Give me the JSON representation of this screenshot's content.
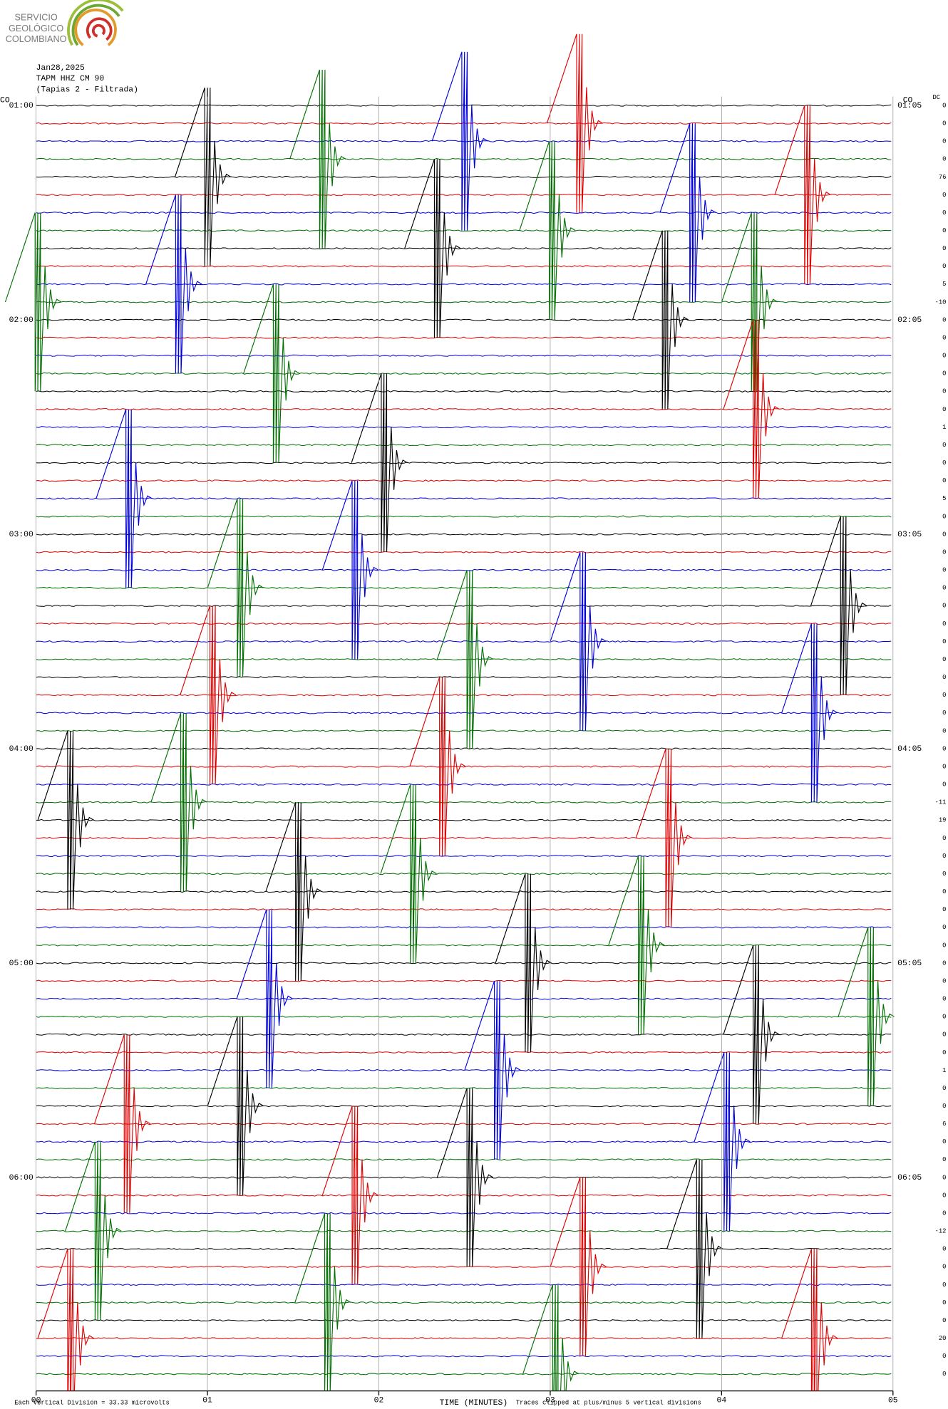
{
  "logo": {
    "lines": [
      "SERVICIO",
      "GEOLÓGICO",
      "COLOMBIANO"
    ]
  },
  "chart_data": {
    "type": "helicorder",
    "header": [
      "Jan28,2025",
      "TAPM HHZ CM 90",
      "(Tapias 2 - Filtrada)"
    ],
    "network_left": "CO",
    "network_right": "CO",
    "offset_title": "DC",
    "row_colors": [
      "#000000",
      "#e00000",
      "#0000e0",
      "#007000"
    ],
    "start_labels": [
      "01:00",
      "02:00",
      "03:00",
      "04:00",
      "05:00",
      "06:00"
    ],
    "end_labels": [
      "01:05",
      "02:05",
      "03:05",
      "04:05",
      "05:05",
      "06:05"
    ],
    "offsets": [
      0,
      0,
      0,
      0,
      76,
      0,
      0,
      0,
      0,
      0,
      5,
      -10,
      0,
      0,
      0,
      0,
      0,
      0,
      1,
      0,
      0,
      0,
      5,
      0,
      0,
      0,
      0,
      0,
      0,
      0,
      0,
      0,
      0,
      0,
      0,
      0,
      0,
      0,
      0,
      -11,
      19,
      0,
      0,
      0,
      0,
      0,
      0,
      0,
      0,
      0,
      0,
      0,
      0,
      0,
      1,
      0,
      0,
      6,
      0,
      0,
      0,
      0,
      0,
      -12,
      0,
      0,
      0,
      0,
      0,
      20,
      0,
      0
    ],
    "xlim": [
      0,
      5
    ],
    "xticks": [
      {
        "value": 0,
        "label": "00"
      },
      {
        "value": 1,
        "label": "01"
      },
      {
        "value": 2,
        "label": "02"
      },
      {
        "value": 3,
        "label": "03"
      },
      {
        "value": 4,
        "label": "04"
      },
      {
        "value": 5,
        "label": "05"
      }
    ],
    "grid": true,
    "xlabel": "TIME (MINUTES)",
    "scale_note": "Each Vertical Division =  33.33 microvolts",
    "clip_note": "Traces clipped at plus/minus 5 vertical divisions",
    "pulses": [
      {
        "row": 1,
        "minute": 3.17
      },
      {
        "row": 2,
        "minute": 2.5
      },
      {
        "row": 3,
        "minute": 1.67
      },
      {
        "row": 4,
        "minute": 1.0
      },
      {
        "row": 5,
        "minute": 4.5
      },
      {
        "row": 6,
        "minute": 3.83
      },
      {
        "row": 7,
        "minute": 3.01
      },
      {
        "row": 8,
        "minute": 2.34
      },
      {
        "row": 10,
        "minute": 0.83
      },
      {
        "row": 11,
        "minute": 0.01
      },
      {
        "row": 11,
        "minute": 4.19
      },
      {
        "row": 12,
        "minute": 3.67
      },
      {
        "row": 15,
        "minute": 1.4
      },
      {
        "row": 17,
        "minute": 4.2
      },
      {
        "row": 20,
        "minute": 2.03
      },
      {
        "row": 22,
        "minute": 0.54
      },
      {
        "row": 26,
        "minute": 1.86
      },
      {
        "row": 27,
        "minute": 1.19
      },
      {
        "row": 28,
        "minute": 4.71
      },
      {
        "row": 30,
        "minute": 3.19
      },
      {
        "row": 31,
        "minute": 2.53
      },
      {
        "row": 33,
        "minute": 1.03
      },
      {
        "row": 34,
        "minute": 4.54
      },
      {
        "row": 37,
        "minute": 2.37
      },
      {
        "row": 39,
        "minute": 0.86
      },
      {
        "row": 40,
        "minute": 0.2
      },
      {
        "row": 41,
        "minute": 3.69
      },
      {
        "row": 43,
        "minute": 2.2
      },
      {
        "row": 44,
        "minute": 1.53
      },
      {
        "row": 47,
        "minute": 3.53
      },
      {
        "row": 48,
        "minute": 2.87
      },
      {
        "row": 50,
        "minute": 1.36
      },
      {
        "row": 51,
        "minute": 4.87
      },
      {
        "row": 52,
        "minute": 4.2
      },
      {
        "row": 54,
        "minute": 2.69
      },
      {
        "row": 56,
        "minute": 1.19
      },
      {
        "row": 57,
        "minute": 0.53
      },
      {
        "row": 58,
        "minute": 4.03
      },
      {
        "row": 60,
        "minute": 2.53
      },
      {
        "row": 61,
        "minute": 1.86
      },
      {
        "row": 63,
        "minute": 0.36
      },
      {
        "row": 64,
        "minute": 3.87
      },
      {
        "row": 65,
        "minute": 3.19
      },
      {
        "row": 67,
        "minute": 1.7
      },
      {
        "row": 69,
        "minute": 0.2
      },
      {
        "row": 69,
        "minute": 4.54
      },
      {
        "row": 71,
        "minute": 3.03
      }
    ]
  }
}
